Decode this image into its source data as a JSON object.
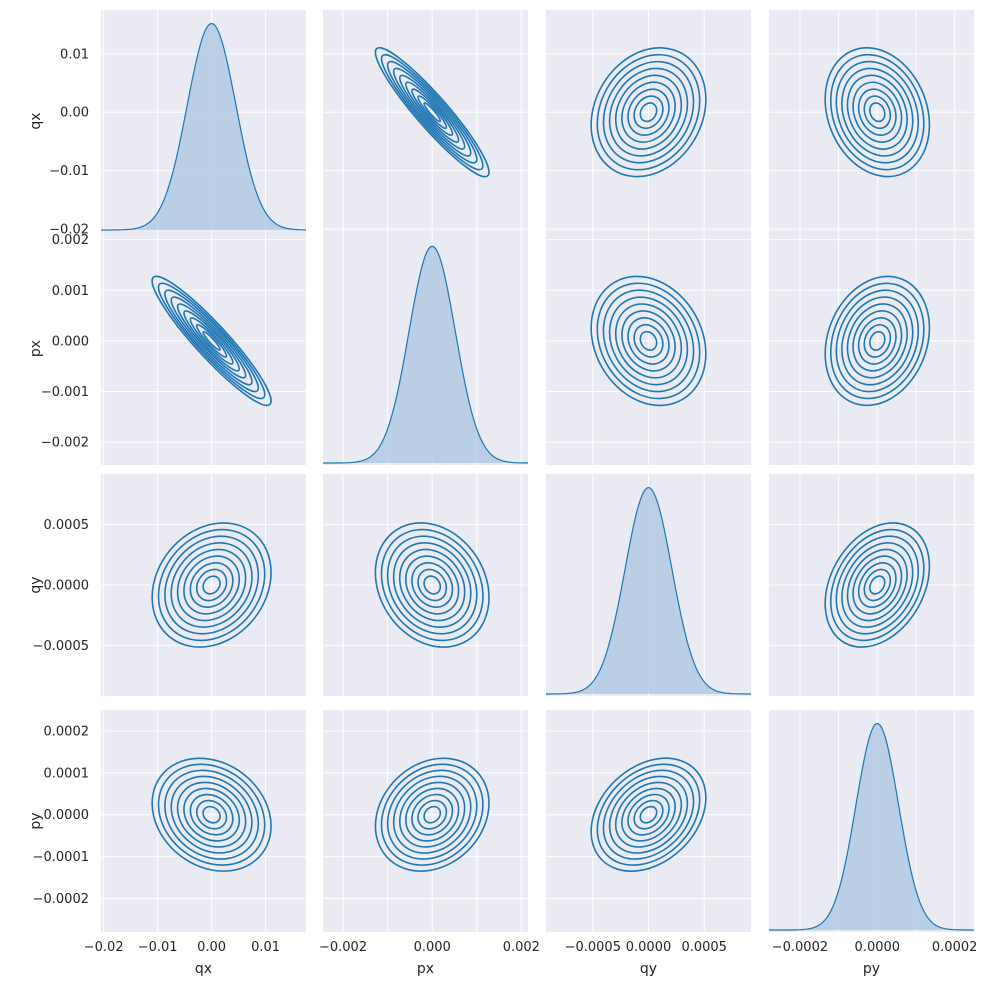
{
  "chart_data": {
    "type": "pairplot",
    "variables": [
      "qx",
      "px",
      "qy",
      "py"
    ],
    "diag_kind": "kde",
    "offdiag_kind": "kde",
    "grid": true,
    "style": {
      "background": "#eaeaf2",
      "grid_color": "#ffffff",
      "line_color": "#1f77b4",
      "fill_color": "#a9c4e0"
    },
    "axes": {
      "qx": {
        "range": [
          -0.0205,
          0.0175
        ],
        "ticks": [
          -0.02,
          -0.01,
          0.0,
          0.01
        ],
        "tick_labels": [
          "−0.02",
          "−0.01",
          "0.00",
          "0.01"
        ],
        "bottom_ticks": [
          -0.02,
          -0.01,
          0.0,
          0.01
        ],
        "bottom_tick_labels": [
          "−0.02",
          "−0.01",
          "0.00",
          "0.01"
        ]
      },
      "px": {
        "range": [
          -0.00245,
          0.00215
        ],
        "ticks": [
          -0.002,
          -0.001,
          0.0,
          0.001,
          0.002
        ],
        "tick_labels": [
          "−0.002",
          "−0.001",
          "0.000",
          "0.001",
          "0.002"
        ],
        "bottom_ticks": [
          -0.002,
          0.0,
          0.002
        ],
        "bottom_tick_labels": [
          "−0.002",
          "0.000",
          "0.002"
        ]
      },
      "qy": {
        "range": [
          -0.00092,
          0.00092
        ],
        "ticks": [
          -0.0005,
          0.0,
          0.0005
        ],
        "tick_labels": [
          "−0.0005",
          "0.0000",
          "0.0005"
        ],
        "bottom_ticks": [
          -0.0005,
          0.0,
          0.0005
        ],
        "bottom_tick_labels": [
          "−0.0005",
          "0.0000",
          "0.0005"
        ]
      },
      "py": {
        "range": [
          -0.00028,
          0.00025
        ],
        "ticks": [
          -0.0002,
          -0.0001,
          0.0,
          0.0001,
          0.0002
        ],
        "tick_labels": [
          "−0.0002",
          "−0.0001",
          "0.0000",
          "0.0001",
          "0.0002"
        ],
        "bottom_ticks": [
          -0.0002,
          0.0,
          0.0002
        ],
        "bottom_tick_labels": [
          "−0.0002",
          "0.0000",
          "0.0002"
        ]
      }
    },
    "distributions": {
      "qx": {
        "mean": 0.0,
        "std": 0.0045
      },
      "px": {
        "mean": 0.0,
        "std": 0.00052
      },
      "qy": {
        "mean": 0.0,
        "std": 0.00021
      },
      "py": {
        "mean": 0.0,
        "std": 5.5e-05
      }
    },
    "correlations": [
      {
        "x": "qx",
        "y": "px",
        "r": -0.93
      },
      {
        "x": "qx",
        "y": "qy",
        "r": 0.2
      },
      {
        "x": "qx",
        "y": "py",
        "r": -0.2
      },
      {
        "x": "px",
        "y": "qy",
        "r": -0.2
      },
      {
        "x": "px",
        "y": "py",
        "r": 0.2
      },
      {
        "x": "qy",
        "y": "py",
        "r": 0.3
      }
    ],
    "contour_levels": 9
  }
}
